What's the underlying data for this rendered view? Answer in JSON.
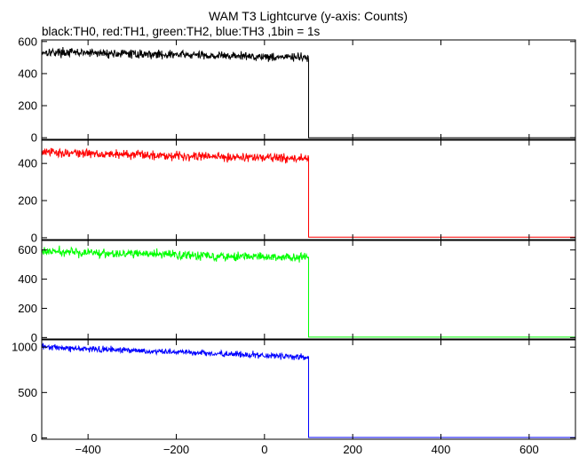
{
  "chart_data": {
    "type": "line",
    "title": "WAM T3 Lightcurve (y-axis: Counts)",
    "subtitle": "black:TH0, red:TH1, green:TH2, blue:TH3 ,1bin = 1s",
    "xlim": [
      -505,
      705
    ],
    "x_ticks": [
      -400,
      -200,
      0,
      200,
      400,
      600
    ],
    "x_tick_labels": [
      "−400",
      "−200",
      "0",
      "200",
      "400",
      "600"
    ],
    "grid": false,
    "panels": [
      {
        "name": "TH0",
        "color": "#000000",
        "ylim": [
          -10,
          610
        ],
        "y_ticks": [
          0,
          200,
          400,
          600
        ],
        "y_tick_labels": [
          "0",
          "200",
          "400",
          "600"
        ],
        "drop_x": 100,
        "start_level": 535,
        "end_level": 500,
        "noise": 22,
        "after_level": 0
      },
      {
        "name": "TH1",
        "color": "#ff0000",
        "ylim": [
          -10,
          525
        ],
        "y_ticks": [
          0,
          200,
          400
        ],
        "y_tick_labels": [
          "0",
          "200",
          "400"
        ],
        "drop_x": 100,
        "start_level": 460,
        "end_level": 425,
        "noise": 20,
        "after_level": 3
      },
      {
        "name": "TH2",
        "color": "#00ff00",
        "ylim": [
          -10,
          665
        ],
        "y_ticks": [
          0,
          200,
          400,
          600
        ],
        "y_tick_labels": [
          "0",
          "200",
          "400",
          "600"
        ],
        "drop_x": 100,
        "start_level": 590,
        "end_level": 545,
        "noise": 25,
        "after_level": 3
      },
      {
        "name": "TH3",
        "color": "#0000ff",
        "ylim": [
          -15,
          1080
        ],
        "y_ticks": [
          0,
          500,
          1000
        ],
        "y_tick_labels": [
          "0",
          "500",
          "1000"
        ],
        "drop_x": 100,
        "start_level": 1000,
        "end_level": 890,
        "noise": 28,
        "after_level": 5
      }
    ]
  }
}
